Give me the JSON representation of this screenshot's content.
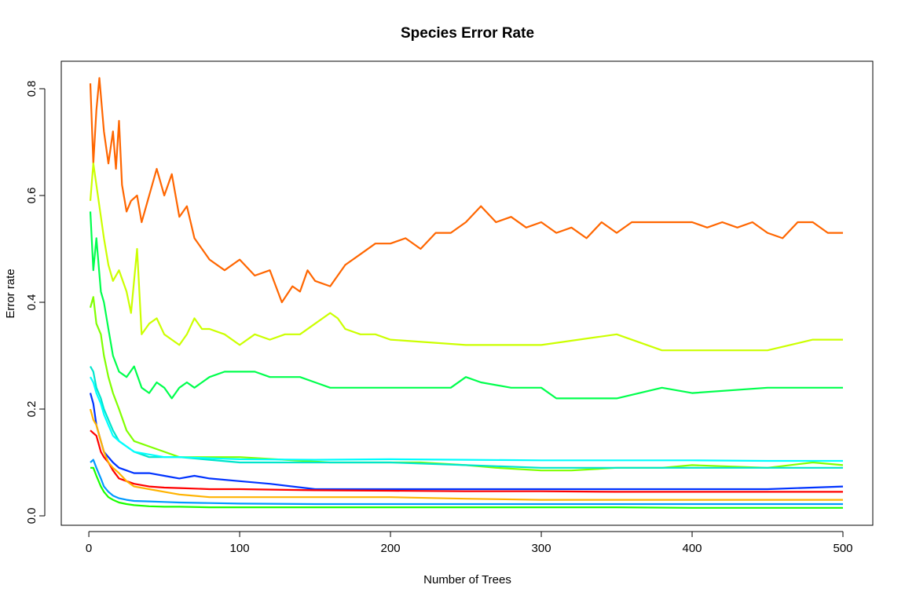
{
  "chart_data": {
    "type": "line",
    "title": "Species Error Rate",
    "xlabel": "Number of Trees",
    "ylabel": "Error rate",
    "xlim": [
      1,
      500
    ],
    "ylim": [
      0,
      0.82
    ],
    "xticks": [
      0,
      100,
      200,
      300,
      400,
      500
    ],
    "yticks": [
      0.0,
      0.2,
      0.4,
      0.6,
      0.8
    ],
    "xtick_labels": [
      "0",
      "100",
      "200",
      "300",
      "400",
      "500"
    ],
    "ytick_labels": [
      "0.0",
      "0.2",
      "0.4",
      "0.6",
      "0.8"
    ],
    "legend": "none",
    "grid": false,
    "series": [
      {
        "color": "#FF6600",
        "x": [
          1,
          3,
          5,
          7,
          10,
          13,
          16,
          18,
          20,
          22,
          25,
          28,
          32,
          35,
          40,
          45,
          50,
          55,
          60,
          65,
          70,
          75,
          80,
          90,
          100,
          110,
          120,
          128,
          135,
          140,
          145,
          150,
          160,
          170,
          180,
          190,
          200,
          210,
          220,
          230,
          240,
          250,
          260,
          270,
          280,
          290,
          300,
          310,
          320,
          330,
          340,
          350,
          360,
          370,
          380,
          390,
          400,
          410,
          420,
          430,
          440,
          450,
          460,
          470,
          480,
          490,
          500
        ],
        "values": [
          0.81,
          0.66,
          0.76,
          0.82,
          0.72,
          0.66,
          0.72,
          0.65,
          0.74,
          0.62,
          0.57,
          0.59,
          0.6,
          0.55,
          0.6,
          0.65,
          0.6,
          0.64,
          0.56,
          0.58,
          0.52,
          0.5,
          0.48,
          0.46,
          0.48,
          0.45,
          0.46,
          0.4,
          0.43,
          0.42,
          0.46,
          0.44,
          0.43,
          0.47,
          0.49,
          0.51,
          0.51,
          0.52,
          0.5,
          0.53,
          0.53,
          0.55,
          0.58,
          0.55,
          0.56,
          0.54,
          0.55,
          0.53,
          0.54,
          0.52,
          0.55,
          0.53,
          0.55,
          0.55,
          0.55,
          0.55,
          0.55,
          0.54,
          0.55,
          0.54,
          0.55,
          0.53,
          0.52,
          0.55,
          0.55,
          0.53,
          0.53
        ]
      },
      {
        "color": "#CCFF00",
        "x": [
          1,
          3,
          6,
          10,
          13,
          16,
          20,
          25,
          28,
          32,
          35,
          40,
          45,
          50,
          55,
          60,
          65,
          70,
          75,
          80,
          90,
          100,
          110,
          120,
          130,
          140,
          150,
          160,
          165,
          170,
          180,
          190,
          200,
          250,
          300,
          350,
          380,
          400,
          450,
          480,
          500
        ],
        "values": [
          0.59,
          0.66,
          0.6,
          0.52,
          0.47,
          0.44,
          0.46,
          0.42,
          0.38,
          0.5,
          0.34,
          0.36,
          0.37,
          0.34,
          0.33,
          0.32,
          0.34,
          0.37,
          0.35,
          0.35,
          0.34,
          0.32,
          0.34,
          0.33,
          0.34,
          0.34,
          0.36,
          0.38,
          0.37,
          0.35,
          0.34,
          0.34,
          0.33,
          0.32,
          0.32,
          0.34,
          0.31,
          0.31,
          0.31,
          0.33,
          0.33
        ]
      },
      {
        "color": "#00FF4D",
        "x": [
          1,
          3,
          5,
          8,
          10,
          13,
          16,
          20,
          25,
          30,
          35,
          40,
          45,
          50,
          55,
          60,
          65,
          70,
          75,
          80,
          90,
          100,
          110,
          120,
          130,
          140,
          150,
          160,
          170,
          180,
          190,
          200,
          220,
          240,
          250,
          260,
          280,
          300,
          310,
          350,
          380,
          400,
          450,
          480,
          500
        ],
        "values": [
          0.57,
          0.46,
          0.52,
          0.42,
          0.4,
          0.35,
          0.3,
          0.27,
          0.26,
          0.28,
          0.24,
          0.23,
          0.25,
          0.24,
          0.22,
          0.24,
          0.25,
          0.24,
          0.25,
          0.26,
          0.27,
          0.27,
          0.27,
          0.26,
          0.26,
          0.26,
          0.25,
          0.24,
          0.24,
          0.24,
          0.24,
          0.24,
          0.24,
          0.24,
          0.26,
          0.25,
          0.24,
          0.24,
          0.22,
          0.22,
          0.24,
          0.23,
          0.24,
          0.24,
          0.24
        ]
      },
      {
        "color": "#80FF00",
        "x": [
          1,
          3,
          5,
          8,
          10,
          13,
          16,
          20,
          25,
          30,
          40,
          50,
          60,
          80,
          100,
          130,
          160,
          200,
          220,
          250,
          270,
          300,
          320,
          350,
          380,
          400,
          450,
          480,
          500
        ],
        "values": [
          0.39,
          0.41,
          0.36,
          0.34,
          0.3,
          0.26,
          0.23,
          0.2,
          0.16,
          0.14,
          0.13,
          0.12,
          0.11,
          0.11,
          0.11,
          0.105,
          0.1,
          0.1,
          0.1,
          0.095,
          0.09,
          0.085,
          0.085,
          0.09,
          0.09,
          0.095,
          0.09,
          0.1,
          0.095
        ]
      },
      {
        "color": "#00E5CC",
        "x": [
          1,
          3,
          5,
          8,
          10,
          13,
          16,
          20,
          25,
          30,
          40,
          50,
          60,
          80,
          100,
          150,
          200,
          250,
          300,
          350,
          400,
          450,
          500
        ],
        "values": [
          0.28,
          0.27,
          0.24,
          0.22,
          0.2,
          0.18,
          0.16,
          0.14,
          0.13,
          0.12,
          0.11,
          0.11,
          0.11,
          0.105,
          0.1,
          0.1,
          0.1,
          0.095,
          0.09,
          0.09,
          0.09,
          0.09,
          0.09
        ]
      },
      {
        "color": "#00FFFF",
        "x": [
          1,
          3,
          5,
          8,
          10,
          13,
          16,
          20,
          25,
          30,
          40,
          50,
          60,
          80,
          100,
          150,
          200,
          250,
          300,
          350,
          400,
          450,
          500
        ],
        "values": [
          0.26,
          0.25,
          0.23,
          0.21,
          0.19,
          0.17,
          0.15,
          0.14,
          0.13,
          0.12,
          0.115,
          0.11,
          0.11,
          0.108,
          0.106,
          0.105,
          0.106,
          0.105,
          0.104,
          0.104,
          0.104,
          0.103,
          0.103
        ]
      },
      {
        "color": "#0033FF",
        "x": [
          1,
          3,
          5,
          8,
          10,
          13,
          16,
          20,
          25,
          30,
          40,
          50,
          60,
          70,
          80,
          100,
          120,
          150,
          200,
          250,
          300,
          350,
          400,
          450,
          500
        ],
        "values": [
          0.23,
          0.21,
          0.17,
          0.14,
          0.12,
          0.11,
          0.1,
          0.09,
          0.085,
          0.08,
          0.08,
          0.075,
          0.07,
          0.075,
          0.07,
          0.065,
          0.06,
          0.05,
          0.05,
          0.05,
          0.05,
          0.05,
          0.05,
          0.05,
          0.055
        ]
      },
      {
        "color": "#FF0000",
        "x": [
          1,
          3,
          5,
          8,
          10,
          13,
          16,
          20,
          25,
          30,
          40,
          50,
          60,
          80,
          100,
          150,
          200,
          250,
          300,
          350,
          400,
          450,
          500
        ],
        "values": [
          0.16,
          0.155,
          0.15,
          0.12,
          0.11,
          0.1,
          0.085,
          0.07,
          0.065,
          0.06,
          0.055,
          0.053,
          0.052,
          0.05,
          0.05,
          0.048,
          0.047,
          0.046,
          0.046,
          0.045,
          0.045,
          0.045,
          0.045
        ]
      },
      {
        "color": "#FFB300",
        "x": [
          1,
          3,
          5,
          8,
          10,
          13,
          16,
          20,
          25,
          30,
          40,
          50,
          60,
          80,
          100,
          150,
          200,
          250,
          300,
          350,
          400,
          450,
          500
        ],
        "values": [
          0.2,
          0.18,
          0.17,
          0.14,
          0.12,
          0.1,
          0.09,
          0.08,
          0.065,
          0.055,
          0.05,
          0.045,
          0.04,
          0.035,
          0.035,
          0.035,
          0.035,
          0.032,
          0.03,
          0.03,
          0.03,
          0.03,
          0.03
        ]
      },
      {
        "color": "#0099FF",
        "x": [
          1,
          3,
          5,
          8,
          10,
          13,
          16,
          20,
          25,
          30,
          40,
          50,
          60,
          80,
          100,
          150,
          200,
          250,
          300,
          350,
          400,
          450,
          500
        ],
        "values": [
          0.1,
          0.105,
          0.09,
          0.07,
          0.055,
          0.045,
          0.038,
          0.033,
          0.03,
          0.028,
          0.027,
          0.026,
          0.025,
          0.024,
          0.023,
          0.022,
          0.022,
          0.022,
          0.022,
          0.022,
          0.022,
          0.022,
          0.022
        ]
      },
      {
        "color": "#1AFF00",
        "x": [
          1,
          3,
          5,
          8,
          10,
          13,
          16,
          20,
          25,
          30,
          40,
          50,
          60,
          80,
          100,
          150,
          200,
          250,
          300,
          350,
          400,
          450,
          500
        ],
        "values": [
          0.09,
          0.09,
          0.075,
          0.055,
          0.045,
          0.035,
          0.03,
          0.025,
          0.022,
          0.02,
          0.018,
          0.017,
          0.017,
          0.016,
          0.016,
          0.016,
          0.016,
          0.016,
          0.016,
          0.016,
          0.015,
          0.015,
          0.015
        ]
      }
    ]
  }
}
